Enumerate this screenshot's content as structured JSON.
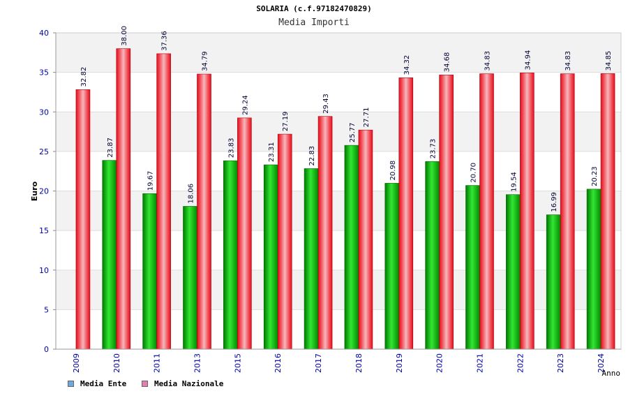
{
  "title": "SOLARIA (c.f.97182470829)",
  "subtitle": "Media Importi",
  "chart_data": {
    "type": "bar",
    "title": "Media Importi",
    "xlabel": "Anno",
    "ylabel": "Euro",
    "ylim": [
      0,
      40
    ],
    "yticks": [
      0,
      5,
      10,
      15,
      20,
      25,
      30,
      35,
      40
    ],
    "categories": [
      "2009",
      "2010",
      "2011",
      "2013",
      "2015",
      "2016",
      "2017",
      "2018",
      "2019",
      "2020",
      "2021",
      "2022",
      "2023",
      "2024"
    ],
    "series": [
      {
        "name": "Media Ente",
        "values": [
          null,
          23.87,
          19.67,
          18.06,
          23.83,
          23.31,
          22.83,
          25.77,
          20.98,
          23.73,
          20.7,
          19.54,
          16.99,
          20.23
        ],
        "labels": [
          "",
          "23.87",
          "19.67",
          "18.06",
          "23.83",
          "23.31",
          "22.83",
          "25.77",
          "20.98",
          "23.73",
          "20.70",
          "19.54",
          "16.99",
          "20.23"
        ]
      },
      {
        "name": "Media Nazionale",
        "values": [
          32.82,
          38.0,
          37.36,
          34.79,
          29.24,
          27.19,
          29.43,
          27.71,
          34.32,
          34.68,
          34.83,
          34.94,
          34.83,
          34.85
        ],
        "labels": [
          "32.82",
          "38.00",
          "37.36",
          "34.79",
          "29.24",
          "27.19",
          "29.43",
          "27.71",
          "34.32",
          "34.68",
          "34.83",
          "34.94",
          "34.83",
          "34.85"
        ]
      }
    ],
    "legend": [
      {
        "label": "Media Ente",
        "swatch": "#6fa8dc"
      },
      {
        "label": "Media Nazionale",
        "swatch": "#e07fb0"
      }
    ],
    "legend_position": "bottom-left",
    "colors": {
      "ente": "#00b400",
      "nazionale": "#e8101e",
      "axis_text": "#0000aa",
      "band": "#f2f2f2"
    },
    "grid": true
  }
}
